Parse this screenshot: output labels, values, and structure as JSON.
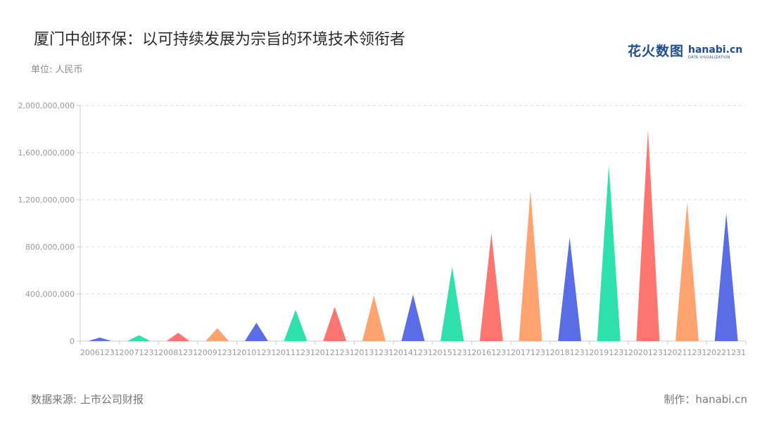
{
  "title": "厦门中创环保：以可持续发展为宗旨的环境技术领衔者",
  "unit_label": "单位: 人民币",
  "logo": {
    "cn": "花火数图",
    "en": "hanabi.cn",
    "sub": "DATA VISUALIZATION"
  },
  "footer": {
    "source": "数据来源: 上市公司财报",
    "credit": "制作：hanabi.cn"
  },
  "chart_data": {
    "type": "bar",
    "mark_shape": "triangle",
    "categories": [
      "20061231",
      "20071231",
      "20081231",
      "20091231",
      "20101231",
      "20111231",
      "20121231",
      "20131231",
      "20141231",
      "20151231",
      "20161231",
      "20171231",
      "20181231",
      "20191231",
      "20201231",
      "20211231",
      "20221231"
    ],
    "values": [
      30000000,
      50000000,
      70000000,
      110000000,
      155000000,
      265000000,
      290000000,
      385000000,
      395000000,
      630000000,
      915000000,
      1275000000,
      880000000,
      1490000000,
      1790000000,
      1175000000,
      1085000000
    ],
    "colors": [
      "#5b6de6",
      "#2de0ac",
      "#ff7570",
      "#ffa471",
      "#5b6de6",
      "#2de0ac",
      "#ff7570",
      "#ffa471",
      "#5b6de6",
      "#2de0ac",
      "#ff7570",
      "#ffa471",
      "#5b6de6",
      "#2de0ac",
      "#ff7570",
      "#ffa471",
      "#5b6de6"
    ],
    "yticks": [
      0,
      400000000,
      800000000,
      1200000000,
      1600000000,
      2000000000
    ],
    "ytick_labels": [
      "0",
      "400,000,000",
      "800,000,000",
      "1,200,000,000",
      "1,600,000,000",
      "2,000,000,000"
    ],
    "ylim": [
      0,
      2000000000
    ],
    "grid": true,
    "legend": "none"
  }
}
